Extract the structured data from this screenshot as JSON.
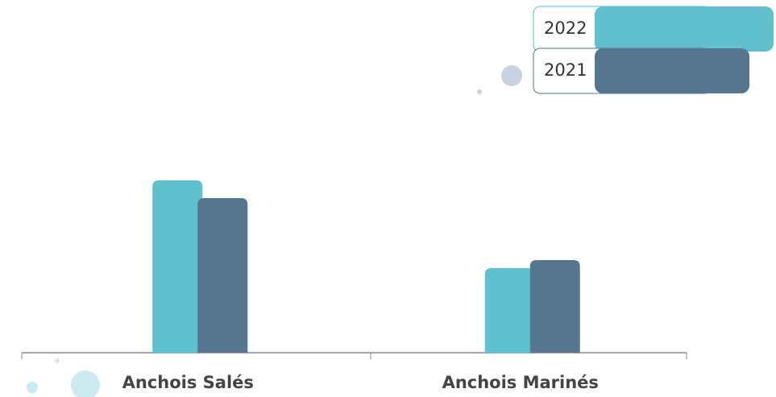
{
  "chart_data": {
    "type": "bar",
    "categories": [
      "Anchois Salés",
      "Anchois Marinés"
    ],
    "series": [
      {
        "name": "2022",
        "color": "#5fc1ce",
        "values": [
          214,
          105
        ]
      },
      {
        "name": "2021",
        "color": "#567590",
        "values": [
          192,
          115
        ]
      }
    ],
    "ylim": [
      0,
      250
    ],
    "legend": "top-right"
  }
}
